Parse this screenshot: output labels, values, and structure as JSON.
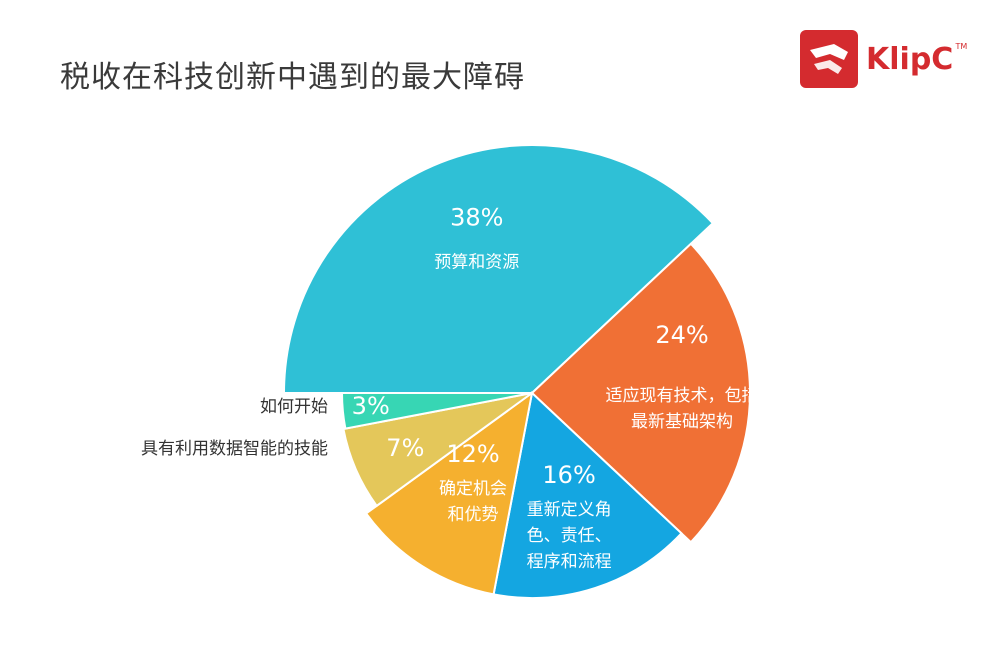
{
  "page": {
    "title": "税收在科技创新中遇到的最大障碍"
  },
  "logo": {
    "text": "KlipC",
    "tm": "TM",
    "color": "#d42b2f"
  },
  "chart_data": {
    "type": "pie",
    "title": "税收在科技创新中遇到的最大障碍",
    "slices": [
      {
        "label_lines": [
          "预算和资源"
        ],
        "value": 38,
        "value_label": "38%",
        "color": "#2fc0d6",
        "label_position": "inside"
      },
      {
        "label_lines": [
          "适应现有技术，包括",
          "最新基础架构"
        ],
        "value": 24,
        "value_label": "24%",
        "color": "#f07035",
        "label_position": "inside"
      },
      {
        "label_lines": [
          "重新定义角",
          "色、责任、",
          "程序和流程"
        ],
        "value": 16,
        "value_label": "16%",
        "color": "#14a6e1",
        "label_position": "inside"
      },
      {
        "label_lines": [
          "确定机会",
          "和优势"
        ],
        "value": 12,
        "value_label": "12%",
        "color": "#f5b02f",
        "label_position": "inside"
      },
      {
        "label_lines": [
          "具有利用数据智能的技能"
        ],
        "value": 7,
        "value_label": "7%",
        "color": "#e4c75a",
        "label_position": "outside"
      },
      {
        "label_lines": [
          "如何开始"
        ],
        "value": 3,
        "value_label": "3%",
        "color": "#37d6b4",
        "label_position": "outside"
      }
    ]
  }
}
